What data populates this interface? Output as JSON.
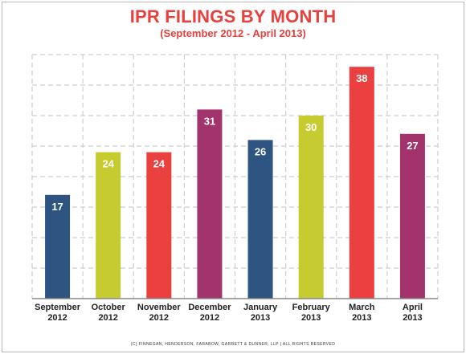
{
  "chart_data": {
    "type": "bar",
    "title": "IPR FILINGS BY MONTH",
    "subtitle": "(September 2012 - April 2013)",
    "categories": [
      [
        "September",
        "2012"
      ],
      [
        "October",
        "2012"
      ],
      [
        "November",
        "2012"
      ],
      [
        "December",
        "2012"
      ],
      [
        "January",
        "2013"
      ],
      [
        "February",
        "2013"
      ],
      [
        "March",
        "2013"
      ],
      [
        "April",
        "2013"
      ]
    ],
    "values": [
      17,
      24,
      24,
      31,
      26,
      30,
      38,
      27
    ],
    "colors": [
      "#2e5582",
      "#c6cb2f",
      "#ea4140",
      "#a3336d",
      "#2e5582",
      "#c6cb2f",
      "#ea4140",
      "#a3336d"
    ],
    "ylim": [
      0,
      40
    ],
    "grid": true,
    "data_labels": true
  },
  "footer": "(C) FINNEGAN, HENDERSON, FARABOW, GARRETT & DUNNER, LLP | ALL RIGHTS RESERVED"
}
